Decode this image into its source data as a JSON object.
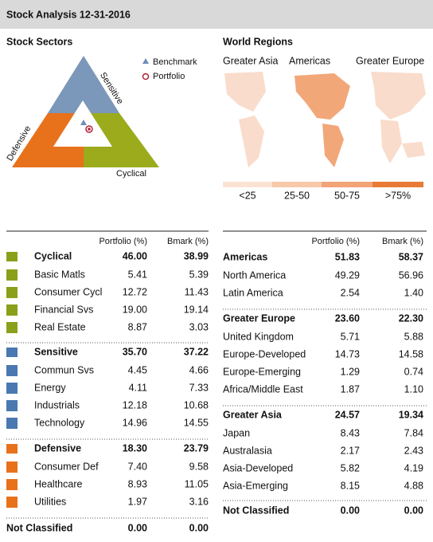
{
  "header": {
    "title": "Stock Analysis 12-31-2016"
  },
  "sectors": {
    "title": "Stock Sectors",
    "legend": [
      "Benchmark",
      "Portfolio"
    ],
    "triangle_labels": [
      "Sensitive",
      "Defensive",
      "Cyclical"
    ]
  },
  "regions": {
    "title": "World Regions",
    "labels": [
      "Greater Asia",
      "Americas",
      "Greater Europe"
    ],
    "scale": [
      "<25",
      "25-50",
      "50-75",
      ">75%"
    ]
  },
  "sector_table": {
    "headers": [
      "Portfolio (%)",
      "Bmark (%)"
    ],
    "groups": [
      {
        "name": "Cyclical",
        "portfolio": "46.00",
        "bmark": "38.99",
        "rows": [
          {
            "name": "Basic Matls",
            "portfolio": "5.41",
            "bmark": "5.39"
          },
          {
            "name": "Consumer Cycl",
            "portfolio": "12.72",
            "bmark": "11.43"
          },
          {
            "name": "Financial Svs",
            "portfolio": "19.00",
            "bmark": "19.14"
          },
          {
            "name": "Real Estate",
            "portfolio": "8.87",
            "bmark": "3.03"
          }
        ]
      },
      {
        "name": "Sensitive",
        "portfolio": "35.70",
        "bmark": "37.22",
        "rows": [
          {
            "name": "Commun Svs",
            "portfolio": "4.45",
            "bmark": "4.66"
          },
          {
            "name": "Energy",
            "portfolio": "4.11",
            "bmark": "7.33"
          },
          {
            "name": "Industrials",
            "portfolio": "12.18",
            "bmark": "10.68"
          },
          {
            "name": "Technology",
            "portfolio": "14.96",
            "bmark": "14.55"
          }
        ]
      },
      {
        "name": "Defensive",
        "portfolio": "18.30",
        "bmark": "23.79",
        "rows": [
          {
            "name": "Consumer Def",
            "portfolio": "7.40",
            "bmark": "9.58"
          },
          {
            "name": "Healthcare",
            "portfolio": "8.93",
            "bmark": "11.05"
          },
          {
            "name": "Utilities",
            "portfolio": "1.97",
            "bmark": "3.16"
          }
        ]
      }
    ],
    "not_classified": {
      "name": "Not Classified",
      "portfolio": "0.00",
      "bmark": "0.00"
    }
  },
  "region_table": {
    "headers": [
      "Portfolio (%)",
      "Bmark (%)"
    ],
    "groups": [
      {
        "name": "Americas",
        "portfolio": "51.83",
        "bmark": "58.37",
        "rows": [
          {
            "name": "North America",
            "portfolio": "49.29",
            "bmark": "56.96"
          },
          {
            "name": "Latin America",
            "portfolio": "2.54",
            "bmark": "1.40"
          }
        ]
      },
      {
        "name": "Greater Europe",
        "portfolio": "23.60",
        "bmark": "22.30",
        "rows": [
          {
            "name": "United Kingdom",
            "portfolio": "5.71",
            "bmark": "5.88"
          },
          {
            "name": "Europe-Developed",
            "portfolio": "14.73",
            "bmark": "14.58"
          },
          {
            "name": "Europe-Emerging",
            "portfolio": "1.29",
            "bmark": "0.74"
          },
          {
            "name": "Africa/Middle East",
            "portfolio": "1.87",
            "bmark": "1.10"
          }
        ]
      },
      {
        "name": "Greater Asia",
        "portfolio": "24.57",
        "bmark": "19.34",
        "rows": [
          {
            "name": "Japan",
            "portfolio": "8.43",
            "bmark": "7.84"
          },
          {
            "name": "Australasia",
            "portfolio": "2.17",
            "bmark": "2.43"
          },
          {
            "name": "Asia-Developed",
            "portfolio": "5.82",
            "bmark": "4.19"
          },
          {
            "name": "Asia-Emerging",
            "portfolio": "8.15",
            "bmark": "4.88"
          }
        ]
      }
    ],
    "not_classified": {
      "name": "Not Classified",
      "portfolio": "0.00",
      "bmark": "0.00"
    }
  }
}
